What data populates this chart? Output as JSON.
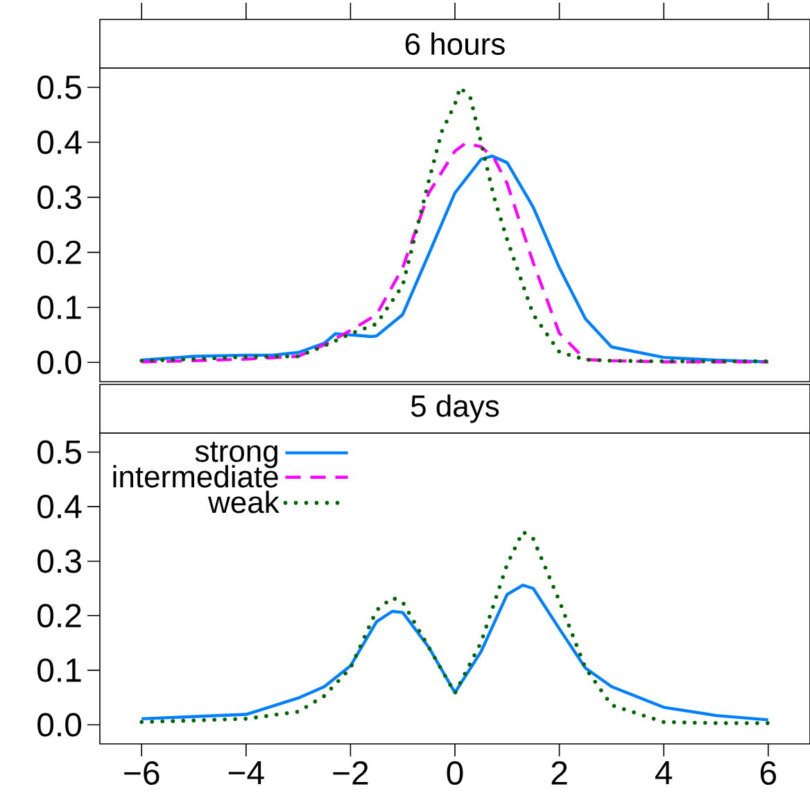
{
  "chart_data": [
    {
      "type": "line",
      "title": "6 hours",
      "xlim": [
        -6.8,
        6.8
      ],
      "ylim": [
        -0.035,
        0.535
      ],
      "tick_labels": "y",
      "xticks": [
        -6,
        -4,
        -2,
        0,
        2,
        4,
        6
      ],
      "yticks": [
        {
          "value": 0,
          "label": "0.0"
        },
        {
          "value": 0.1,
          "label": "0.1"
        },
        {
          "value": 0.2,
          "label": "0.2"
        },
        {
          "value": 0.3,
          "label": "0.3"
        },
        {
          "value": 0.4,
          "label": "0.4"
        },
        {
          "value": 0.5,
          "label": "0.5"
        }
      ],
      "series": [
        {
          "color": "#0080ff",
          "line_style": "solid",
          "x": [
            -6,
            -5,
            -4,
            -3.5,
            -3,
            -2.5,
            -2.29,
            -2,
            -1.6,
            -1.5,
            -1,
            -0.5,
            0,
            0.5,
            0.71,
            1,
            1.5,
            2,
            2.5,
            3,
            4,
            5,
            6
          ],
          "values": [
            0.004,
            0.011,
            0.013,
            0.013,
            0.018,
            0.035,
            0.052,
            0.05,
            0.047,
            0.048,
            0.087,
            0.197,
            0.308,
            0.369,
            0.375,
            0.363,
            0.282,
            0.172,
            0.079,
            0.028,
            0.009,
            0.004,
            0.001
          ]
        },
        {
          "color": "#ff00ff",
          "line_style": "dashed",
          "x": [
            -6,
            -5,
            -4,
            -3,
            -2.5,
            -2,
            -1.5,
            -1,
            -0.5,
            0,
            0.2,
            0.5,
            0.75,
            1,
            1.5,
            2,
            2.5,
            3,
            4,
            5,
            6
          ],
          "values": [
            0.001,
            0.003,
            0.006,
            0.011,
            0.032,
            0.058,
            0.087,
            0.172,
            0.308,
            0.384,
            0.398,
            0.392,
            0.371,
            0.325,
            0.181,
            0.053,
            0.005,
            0.003,
            0.001,
            0.001,
            0.001
          ]
        },
        {
          "color": "#006400",
          "line_style": "dotted",
          "x": [
            -6,
            -5,
            -4,
            -3,
            -2.5,
            -2,
            -1.5,
            -1,
            -0.5,
            -0.25,
            0,
            0.1,
            0.3,
            0.5,
            0.75,
            1,
            1.5,
            2,
            2.5,
            3,
            4,
            5,
            6
          ],
          "values": [
            0.003,
            0.006,
            0.01,
            0.011,
            0.03,
            0.052,
            0.07,
            0.14,
            0.33,
            0.42,
            0.469,
            0.5,
            0.48,
            0.4,
            0.3,
            0.223,
            0.087,
            0.019,
            0.005,
            0.003,
            0.002,
            0.002,
            0.002
          ]
        }
      ]
    },
    {
      "type": "line",
      "title": "5 days",
      "xlim": [
        -6.8,
        6.8
      ],
      "ylim": [
        -0.035,
        0.535
      ],
      "legend": "top left",
      "xticks": [
        {
          "value": -6,
          "label": "−6"
        },
        {
          "value": -4,
          "label": "−4"
        },
        {
          "value": -2,
          "label": "−2"
        },
        0,
        2,
        4,
        6
      ],
      "yticks": [
        {
          "value": 0,
          "label": "0.0"
        },
        {
          "value": 0.1,
          "label": "0.1"
        },
        {
          "value": 0.2,
          "label": "0.2"
        },
        {
          "value": 0.3,
          "label": "0.3"
        },
        {
          "value": 0.4,
          "label": "0.4"
        },
        {
          "value": 0.5,
          "label": "0.5"
        }
      ],
      "series": [
        {
          "name": "strong",
          "color": "#0080ff",
          "line_style": "solid",
          "x": [
            -6,
            -5,
            -4,
            -3,
            -2.5,
            -2,
            -1.5,
            -1.2,
            -1,
            -0.5,
            0,
            0.5,
            1,
            1.3,
            1.5,
            2,
            2.5,
            3,
            4,
            5,
            6
          ],
          "values": [
            0.011,
            0.015,
            0.019,
            0.049,
            0.07,
            0.108,
            0.189,
            0.208,
            0.206,
            0.142,
            0.059,
            0.134,
            0.239,
            0.256,
            0.25,
            0.176,
            0.104,
            0.07,
            0.032,
            0.017,
            0.009
          ]
        },
        {
          "name": "intermediate",
          "color": "#ff00ff",
          "line_style": "dashed"
        },
        {
          "name": "weak",
          "color": "#006400",
          "line_style": "dotted",
          "x": [
            -6,
            -5,
            -4,
            -3,
            -2.5,
            -2,
            -1.5,
            -1.2,
            -1,
            -0.5,
            0,
            0.5,
            1,
            1.3,
            1.5,
            2,
            2.5,
            3,
            4,
            5,
            6
          ],
          "values": [
            0.005,
            0.008,
            0.011,
            0.024,
            0.053,
            0.104,
            0.21,
            0.233,
            0.225,
            0.142,
            0.058,
            0.151,
            0.294,
            0.354,
            0.341,
            0.227,
            0.104,
            0.036,
            0.005,
            0.003,
            0.003
          ]
        }
      ]
    }
  ]
}
